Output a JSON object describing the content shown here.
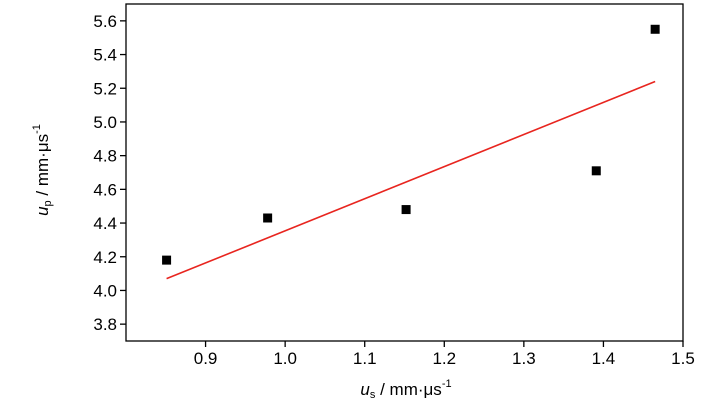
{
  "chart_data": {
    "type": "scatter",
    "xlabel": {
      "var": "u",
      "sub": "s",
      "unit": " / mm·μs",
      "sup": "-1"
    },
    "ylabel": {
      "var": "u",
      "sub": "p",
      "unit": " / mm·μs",
      "sup": "-1"
    },
    "xlim": [
      0.8,
      1.5
    ],
    "ylim": [
      3.7,
      5.7
    ],
    "x_ticks": [
      "0.9",
      "1.0",
      "1.1",
      "1.2",
      "1.3",
      "1.4",
      "1.5"
    ],
    "y_ticks": [
      "3.8",
      "4.0",
      "4.2",
      "4.4",
      "4.6",
      "4.8",
      "5.0",
      "5.2",
      "5.4",
      "5.6"
    ],
    "grid": false,
    "series": [
      {
        "kind": "points",
        "marker": "square",
        "color": "#000000",
        "points": [
          {
            "x": 0.851,
            "y": 4.18
          },
          {
            "x": 0.978,
            "y": 4.43
          },
          {
            "x": 1.152,
            "y": 4.48
          },
          {
            "x": 1.391,
            "y": 4.71
          },
          {
            "x": 1.465,
            "y": 5.55
          }
        ]
      },
      {
        "kind": "fit-line",
        "color": "#e8251f",
        "points": [
          {
            "x": 0.851,
            "y": 4.07
          },
          {
            "x": 1.465,
            "y": 5.24
          }
        ]
      }
    ]
  }
}
